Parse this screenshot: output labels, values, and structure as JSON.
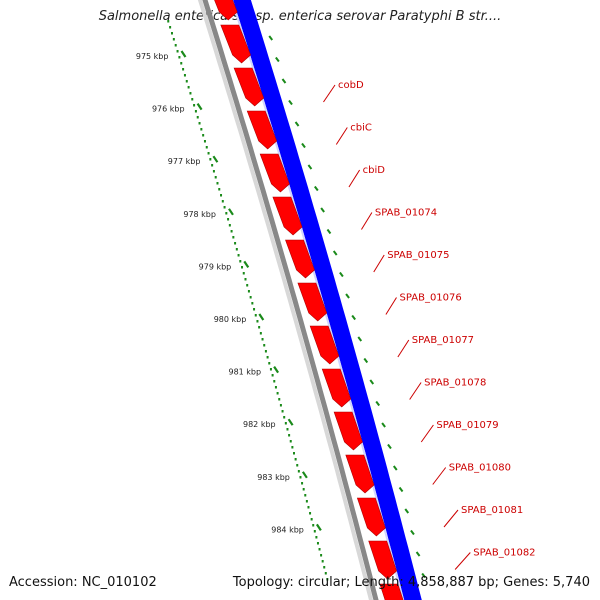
{
  "title": "Salmonella enterica subsp. enterica serovar Paratyphi B str....",
  "accession": "Accession: NC_010102",
  "summary": "Topology: circular; Length: 4,858,887 bp; Genes: 5,740",
  "colors": {
    "forward_strand": "#ff0000",
    "reverse_strand": "#0000ff",
    "backbone": "#888888",
    "ticks": "#1a8a1a",
    "labels": "#cc0000"
  },
  "ruler": {
    "unit": "kbp",
    "ticks": [
      {
        "value": 975,
        "label": "975 kbp"
      },
      {
        "value": 976,
        "label": "976 kbp"
      },
      {
        "value": 977,
        "label": "977 kbp"
      },
      {
        "value": 978,
        "label": "978 kbp"
      },
      {
        "value": 979,
        "label": "979 kbp"
      },
      {
        "value": 980,
        "label": "980 kbp"
      },
      {
        "value": 981,
        "label": "981 kbp"
      },
      {
        "value": 982,
        "label": "982 kbp"
      },
      {
        "value": 983,
        "label": "983 kbp"
      },
      {
        "value": 984,
        "label": "984 kbp"
      }
    ]
  },
  "genes": [
    {
      "name": "cobD"
    },
    {
      "name": "cbiC"
    },
    {
      "name": "cbiD"
    },
    {
      "name": "SPAB_01074"
    },
    {
      "name": "SPAB_01075"
    },
    {
      "name": "SPAB_01076"
    },
    {
      "name": "SPAB_01077"
    },
    {
      "name": "SPAB_01078"
    },
    {
      "name": "SPAB_01079"
    },
    {
      "name": "SPAB_01080"
    },
    {
      "name": "SPAB_01081"
    },
    {
      "name": "SPAB_01082"
    }
  ]
}
